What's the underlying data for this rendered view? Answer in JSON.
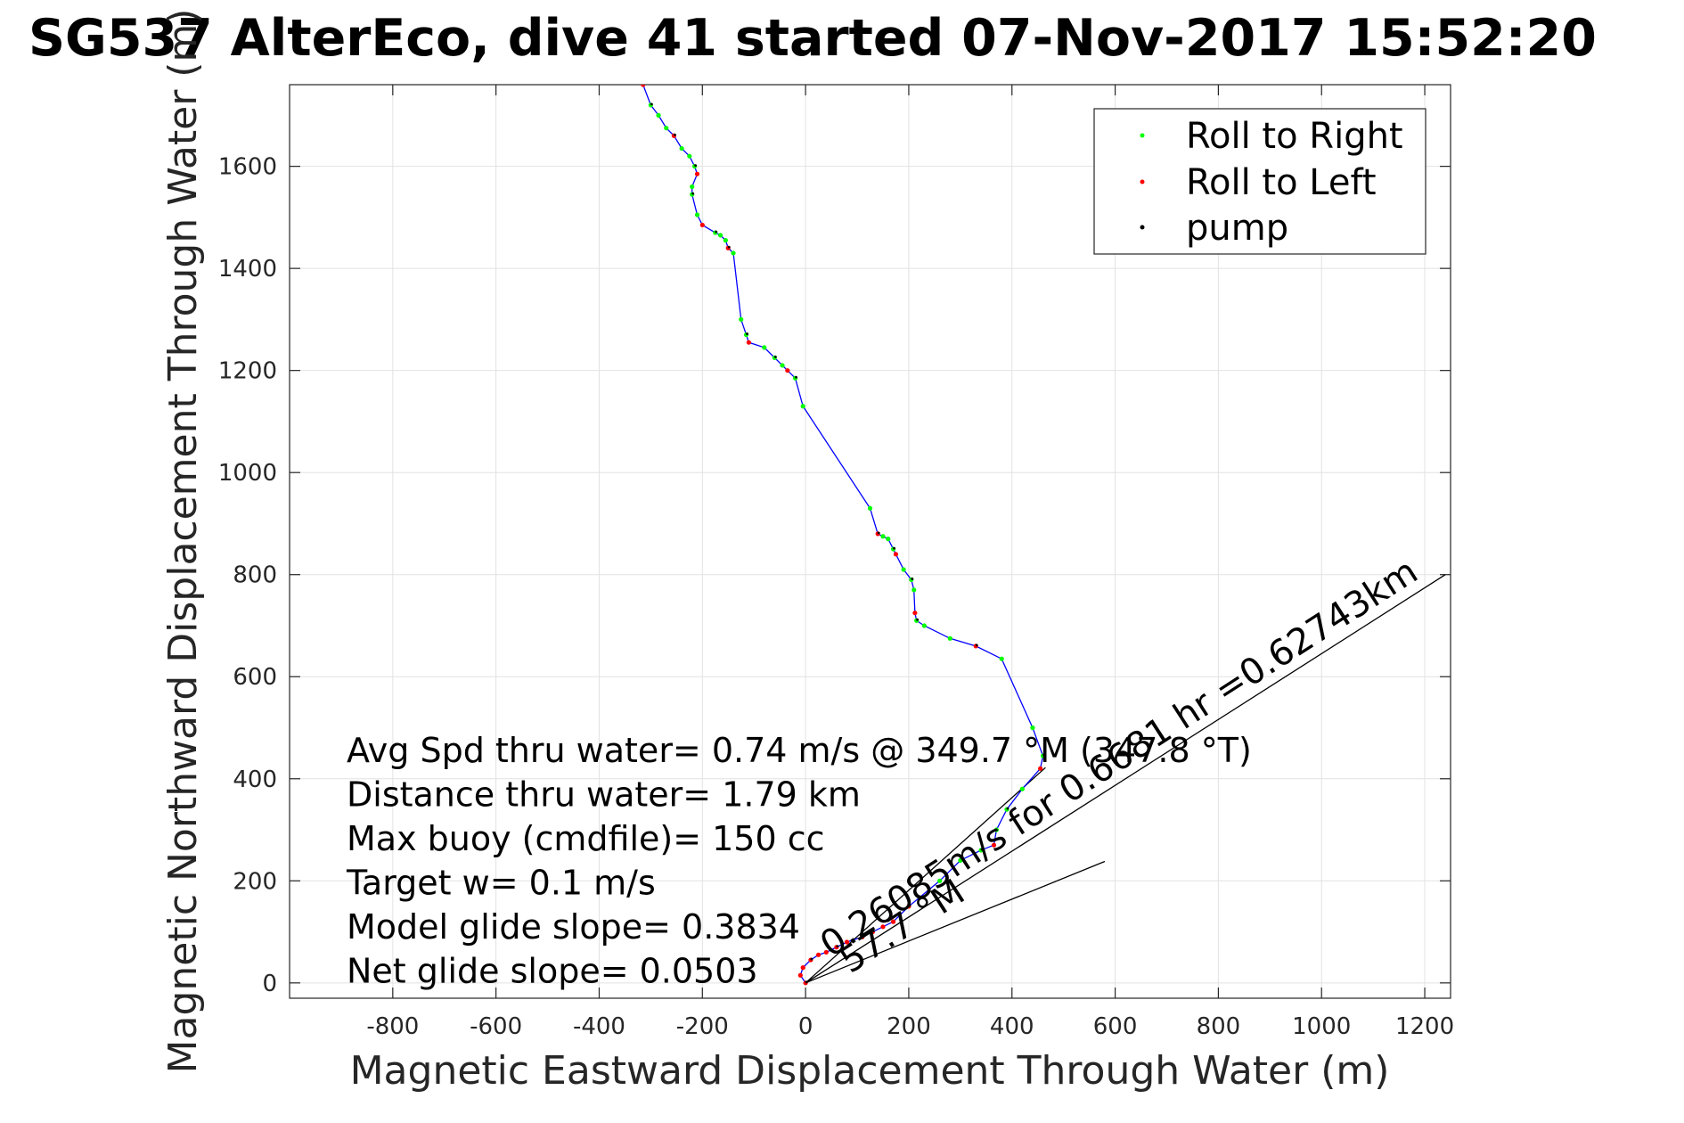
{
  "chart_data": {
    "type": "line",
    "title": "SG537 AlterEco, dive 41 started 07-Nov-2017 15:52:20",
    "xlabel": "Magnetic Eastward Displacement Through Water (m)",
    "ylabel": "Magnetic Northward Displacement Through Water (m)",
    "xlim": [
      -1000,
      1250
    ],
    "ylim": [
      -30,
      1760
    ],
    "xticks": [
      -800,
      -600,
      -400,
      -200,
      0,
      200,
      400,
      600,
      800,
      1000,
      1200
    ],
    "yticks": [
      0,
      200,
      400,
      600,
      800,
      1000,
      1200,
      1400,
      1600
    ],
    "grid": true,
    "legend_position": "top-right",
    "legend": [
      {
        "label": "Roll to Right",
        "color": "#00ff00"
      },
      {
        "label": "Roll to Left",
        "color": "#ff0000"
      },
      {
        "label": "pump",
        "color": "#000000"
      }
    ],
    "track": {
      "color": "#0000ff",
      "x": [
        0,
        -10,
        -5,
        10,
        25,
        40,
        60,
        80,
        110,
        130,
        150,
        170,
        200,
        260,
        300,
        340,
        365,
        370,
        390,
        420,
        455,
        460,
        440,
        380,
        330,
        280,
        230,
        215,
        212,
        210,
        205,
        190,
        175,
        170,
        160,
        150,
        140,
        125,
        -5,
        -20,
        -35,
        -45,
        -60,
        -80,
        -110,
        -115,
        -125,
        -140,
        -150,
        -155,
        -165,
        -175,
        -200,
        -210,
        -220,
        -220,
        -210,
        -215,
        -225,
        -240,
        -255,
        -270,
        -285,
        -300,
        -315
      ],
      "y": [
        0,
        15,
        30,
        45,
        55,
        60,
        70,
        80,
        90,
        100,
        110,
        120,
        150,
        200,
        240,
        260,
        270,
        300,
        340,
        380,
        420,
        445,
        500,
        635,
        660,
        675,
        700,
        710,
        725,
        770,
        790,
        810,
        840,
        850,
        870,
        875,
        880,
        930,
        1130,
        1185,
        1200,
        1210,
        1225,
        1245,
        1255,
        1270,
        1300,
        1430,
        1440,
        1455,
        1465,
        1470,
        1485,
        1505,
        1545,
        1560,
        1585,
        1600,
        1620,
        1635,
        1660,
        1675,
        1700,
        1720,
        1760
      ]
    },
    "reference_lines": [
      {
        "name": "",
        "x": [
          0,
          465
        ],
        "y": [
          0,
          422
        ]
      },
      {
        "name": "",
        "x": [
          0,
          580
        ],
        "y": [
          0,
          238
        ]
      },
      {
        "name": "",
        "x": [
          0,
          1240
        ],
        "y": [
          0,
          800
        ]
      }
    ],
    "annotations": [
      "0.26085m/s for 0.6681 hr =0.62743km",
      "57.7 °M"
    ],
    "summary_lines": [
      "Avg Spd thru water=  0.74 m/s @ 349.7 °M (347.8 °T)",
      "Distance thru water=  1.79 km",
      "Max buoy (cmdfile)= 150 cc",
      "Target w= 0.1 m/s",
      "Model glide slope= 0.3834",
      "Net glide slope= 0.0503"
    ]
  }
}
